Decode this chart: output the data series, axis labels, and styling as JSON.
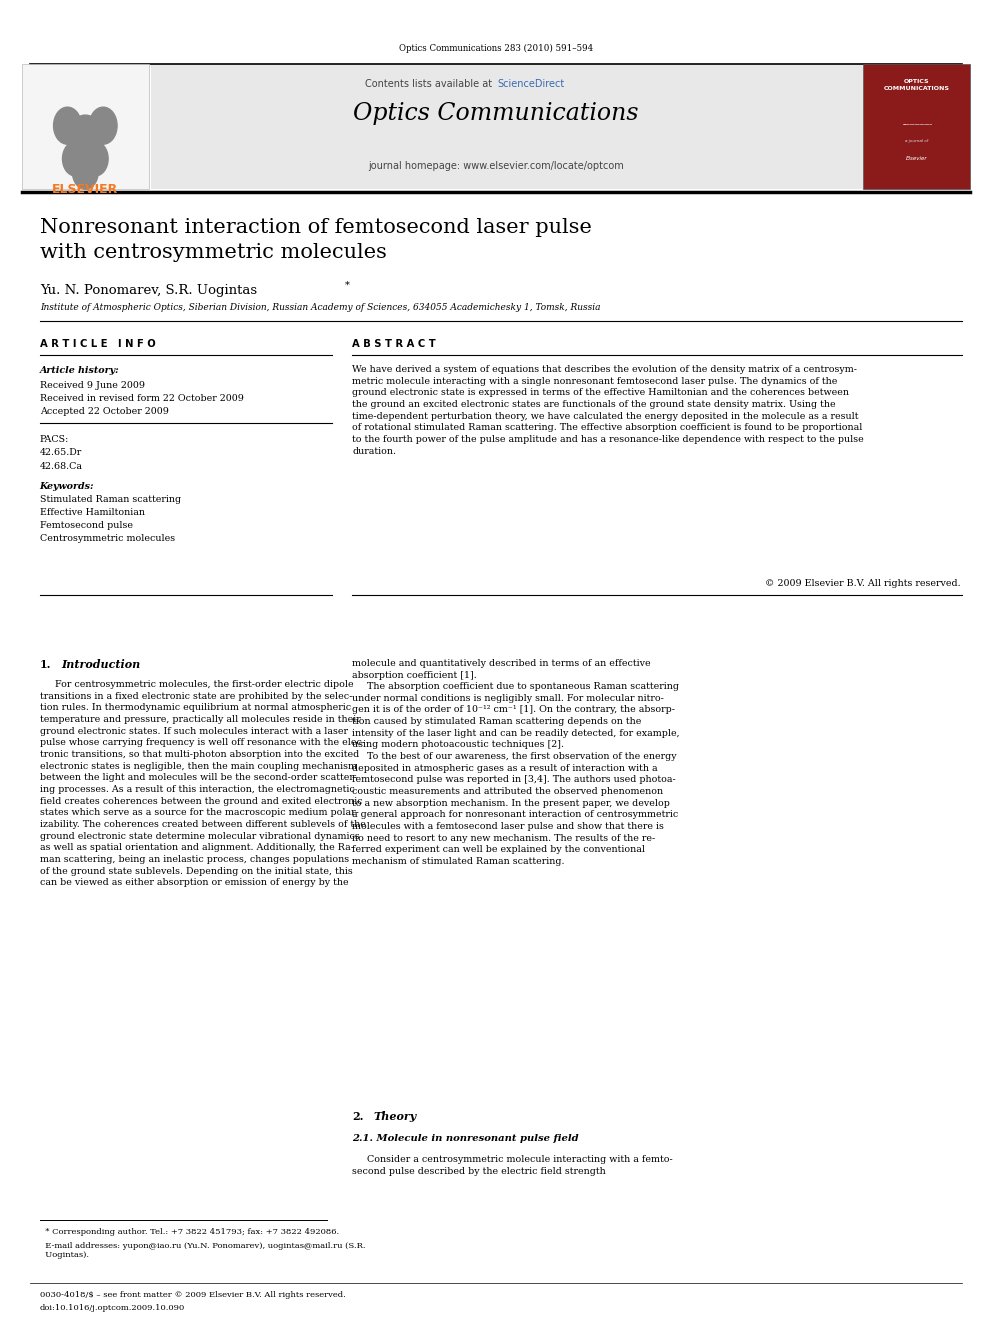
{
  "page_width": 9.92,
  "page_height": 13.23,
  "bg_color": "#ffffff",
  "journal_ref": "Optics Communications 283 (2010) 591–594",
  "journal_name": "Optics Communications",
  "contents_line": "Contents lists available at ScienceDirect",
  "homepage_line": "journal homepage: www.elsevier.com/locate/optcom",
  "elsevier_color": "#f47920",
  "sciencedirect_color": "#3969b1",
  "header_bg": "#e8e8e8",
  "article_title": "Nonresonant interaction of femtosecond laser pulse\nwith centrosymmetric molecules",
  "authors": "Yu. N. Ponomarev, S.R. Uogintas",
  "affiliation": "Institute of Atmospheric Optics, Siberian Division, Russian Academy of Sciences, 634055 Academichesky 1, Tomsk, Russia",
  "article_info_header": "A R T I C L E   I N F O",
  "abstract_header": "A B S T R A C T",
  "article_history_label": "Article history:",
  "received": "Received 9 June 2009",
  "received_revised": "Received in revised form 22 October 2009",
  "accepted": "Accepted 22 October 2009",
  "pacs_label": "PACS:",
  "pacs1": "42.65.Dr",
  "pacs2": "42.68.Ca",
  "keywords_label": "Keywords:",
  "keyword1": "Stimulated Raman scattering",
  "keyword2": "Effective Hamiltonian",
  "keyword3": "Femtosecond pulse",
  "keyword4": "Centrosymmetric molecules",
  "abstract_text": "We have derived a system of equations that describes the evolution of the density matrix of a centrosym-\nmetric molecule interacting with a single nonresonant femtosecond laser pulse. The dynamics of the\nground electronic state is expressed in terms of the effective Hamiltonian and the coherences between\nthe ground an excited electronic states are functionals of the ground state density matrix. Using the\ntime-dependent perturbation theory, we have calculated the energy deposited in the molecule as a result\nof rotational stimulated Raman scattering. The effective absorption coefficient is found to be proportional\nto the fourth power of the pulse amplitude and has a resonance-like dependence with respect to the pulse\nduration.",
  "copyright": "© 2009 Elsevier B.V. All rights reserved.",
  "section1_title_num": "1.",
  "section1_title_word": "Introduction",
  "section1_left": "     For centrosymmetric molecules, the first-order electric dipole\ntransitions in a fixed electronic state are prohibited by the selec-\ntion rules. In thermodynamic equilibrium at normal atmospheric\ntemperature and pressure, practically all molecules reside in their\nground electronic states. If such molecules interact with a laser\npulse whose carrying frequency is well off resonance with the elec-\ntronic transitions, so that multi-photon absorption into the excited\nelectronic states is negligible, then the main coupling mechanism\nbetween the light and molecules will be the second-order scatter-\ning processes. As a result of this interaction, the electromagnetic\nfield creates coherences between the ground and exited electronic\nstates which serve as a source for the macroscopic medium polar-\nizability. The coherences created between different sublevels of the\nground electronic state determine molecular vibrational dynamics\nas well as spatial orientation and alignment. Additionally, the Ra-\nman scattering, being an inelastic process, changes populations\nof the ground state sublevels. Depending on the initial state, this\ncan be viewed as either absorption or emission of energy by the",
  "section1_right": "molecule and quantitatively described in terms of an effective\nabsorption coefficient [1].\n     The absorption coefficient due to spontaneous Raman scattering\nunder normal conditions is negligibly small. For molecular nitro-\ngen it is of the order of 10⁻¹² cm⁻¹ [1]. On the contrary, the absorp-\ntion caused by stimulated Raman scattering depends on the\nintensity of the laser light and can be readily detected, for example,\nusing modern photoacoustic techniques [2].\n     To the best of our awareness, the first observation of the energy\ndeposited in atmospheric gases as a result of interaction with a\nfemtosecond pulse was reported in [3,4]. The authors used photoa-\ncoustic measurements and attributed the observed phenomenon\nto a new absorption mechanism. In the present paper, we develop\na general approach for nonresonant interaction of centrosymmetric\nmolecules with a femtosecond laser pulse and show that there is\nno need to resort to any new mechanism. The results of the re-\nferred experiment can well be explained by the conventional\nmechanism of stimulated Raman scattering.",
  "section2_title_num": "2.",
  "section2_title_word": "Theory",
  "section2_sub": "2.1. Molecule in nonresonant pulse field",
  "section2_text": "     Consider a centrosymmetric molecule interacting with a femto-\nsecond pulse described by the electric field strength",
  "footnote_star": "  * Corresponding author. Tel.: +7 3822 451793; fax: +7 3822 492086.",
  "footnote_email": "  E-mail addresses: yupon@iao.ru (Yu.N. Ponomarev), uogintas@mail.ru (S.R.\n  Uogintas).",
  "footer_issn": "0030-4018/$ – see front matter © 2009 Elsevier B.V. All rights reserved.",
  "footer_doi": "doi:10.1016/j.optcom.2009.10.090"
}
